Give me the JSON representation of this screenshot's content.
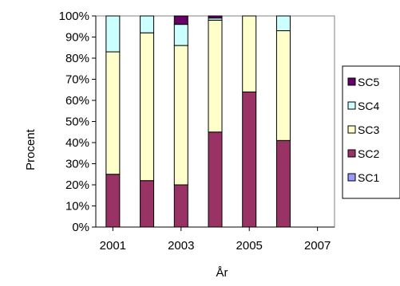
{
  "colors": {
    "SC1": "#9999ff",
    "SC2": "#993366",
    "SC3": "#ffffcc",
    "SC4": "#ccffff",
    "SC5": "#660066",
    "stroke": "#000000",
    "background": "#ffffff"
  },
  "chart_data": {
    "type": "bar",
    "stacked": true,
    "percent": true,
    "title": "",
    "xlabel": "År",
    "ylabel": "Procent",
    "x": [
      2001,
      2002,
      2003,
      2004,
      2005,
      2006
    ],
    "xlim": [
      2000.5,
      2007.5
    ],
    "xticks": [
      "2001",
      "2003",
      "2005",
      "2007"
    ],
    "xtick_values": [
      2001,
      2003,
      2005,
      2007
    ],
    "ylim": [
      0,
      100
    ],
    "yticks": [
      "0%",
      "10%",
      "20%",
      "30%",
      "40%",
      "50%",
      "60%",
      "70%",
      "80%",
      "90%",
      "100%"
    ],
    "ytick_values": [
      0,
      10,
      20,
      30,
      40,
      50,
      60,
      70,
      80,
      90,
      100
    ],
    "grid": false,
    "legend_position": "right",
    "series": [
      {
        "name": "SC1",
        "values": [
          0,
          0,
          0,
          0,
          0,
          0
        ]
      },
      {
        "name": "SC2",
        "values": [
          25,
          22,
          20,
          45,
          64,
          41
        ]
      },
      {
        "name": "SC3",
        "values": [
          58,
          70,
          66,
          53,
          36,
          52
        ]
      },
      {
        "name": "SC4",
        "values": [
          17,
          8,
          10,
          1,
          0,
          7
        ]
      },
      {
        "name": "SC5",
        "values": [
          0,
          0,
          4,
          1,
          0,
          0
        ]
      }
    ],
    "legend_order": [
      "SC5",
      "SC4",
      "SC3",
      "SC2",
      "SC1"
    ]
  }
}
